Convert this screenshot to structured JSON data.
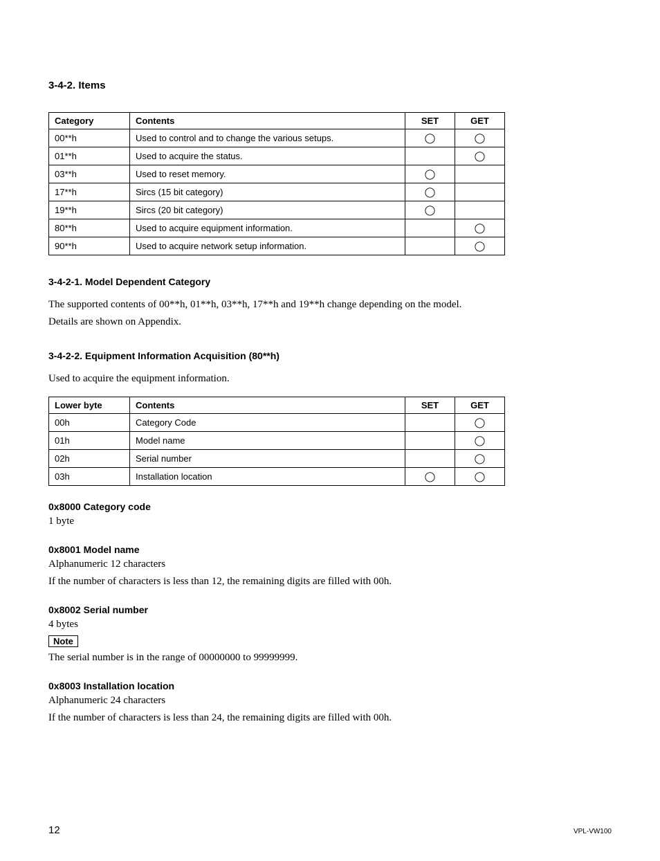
{
  "headings": {
    "main": "3-4-2.   Items",
    "sub1": "3-4-2-1.   Model Dependent Category",
    "sub2": "3-4-2-2.   Equipment Information Acquisition (80**h)"
  },
  "circle": "◯",
  "table1": {
    "headers": {
      "c0": "Category",
      "c1": "Contents",
      "c2": "SET",
      "c3": "GET"
    },
    "rows": [
      {
        "c0": "00**h",
        "c1": "Used to control and to change the various setups.",
        "set": true,
        "get": true
      },
      {
        "c0": "01**h",
        "c1": "Used to acquire the status.",
        "set": false,
        "get": true
      },
      {
        "c0": "03**h",
        "c1": "Used to reset memory.",
        "set": true,
        "get": false
      },
      {
        "c0": "17**h",
        "c1": "Sircs (15 bit category)",
        "set": true,
        "get": false
      },
      {
        "c0": "19**h",
        "c1": "Sircs (20 bit category)",
        "set": true,
        "get": false
      },
      {
        "c0": "80**h",
        "c1": "Used to acquire equipment information.",
        "set": false,
        "get": true
      },
      {
        "c0": "90**h",
        "c1": "Used to acquire network setup information.",
        "set": false,
        "get": true
      }
    ]
  },
  "text": {
    "model_dep_p1": "The supported contents of 00**h, 01**h, 03**h, 17**h and 19**h change depending on the model.",
    "model_dep_p2": "Details are shown on Appendix.",
    "eq_intro": "Used to acquire the equipment information."
  },
  "table2": {
    "headers": {
      "c0": "Lower byte",
      "c1": "Contents",
      "c2": "SET",
      "c3": "GET"
    },
    "rows": [
      {
        "c0": "00h",
        "c1": "Category Code",
        "set": false,
        "get": true
      },
      {
        "c0": "01h",
        "c1": "Model name",
        "set": false,
        "get": true
      },
      {
        "c0": "02h",
        "c1": "Serial number",
        "set": false,
        "get": true
      },
      {
        "c0": "03h",
        "c1": "Installation location",
        "set": true,
        "get": true
      }
    ]
  },
  "items": {
    "i1_title": "0x8000 Category code",
    "i1_l1": "1 byte",
    "i2_title": "0x8001 Model name",
    "i2_l1": "Alphanumeric 12 characters",
    "i2_l2": "If the number of characters is less than 12, the remaining digits are filled with 00h.",
    "i3_title": "0x8002 Serial number",
    "i3_l1": "4 bytes",
    "i3_note_label": "Note",
    "i3_l2": "The serial number is in the range of 00000000 to 99999999.",
    "i4_title": "0x8003 Installation location",
    "i4_l1": "Alphanumeric 24 characters",
    "i4_l2": "If the number of characters is less than 24, the remaining digits are filled with 00h."
  },
  "footer": {
    "page": "12",
    "model": "VPL-VW100"
  }
}
